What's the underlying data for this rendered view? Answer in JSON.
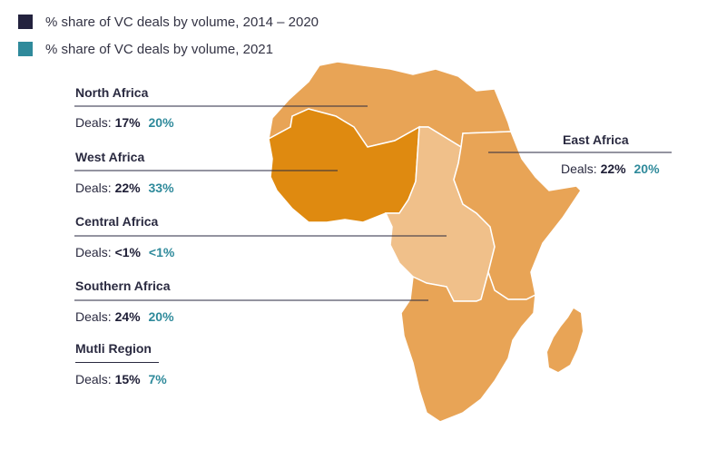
{
  "legend": [
    {
      "label": "% share of VC deals by volume, 2014 – 2020",
      "color": "#23223e"
    },
    {
      "label": "% share of VC deals by volume, 2021",
      "color": "#2f8a9b"
    }
  ],
  "regions": [
    {
      "name": "North Africa",
      "deals_label": "Deals:",
      "share_2014_2020": "17%",
      "share_2021": "20%",
      "fill": "#e8a456"
    },
    {
      "name": "West Africa",
      "deals_label": "Deals:",
      "share_2014_2020": "22%",
      "share_2021": "33%",
      "fill": "#df8a10"
    },
    {
      "name": "Central Africa",
      "deals_label": "Deals:",
      "share_2014_2020": "<1%",
      "share_2021": "<1%",
      "fill": "#f0c08a"
    },
    {
      "name": "Southern Africa",
      "deals_label": "Deals:",
      "share_2014_2020": "24%",
      "share_2021": "20%",
      "fill": "#e8a456"
    },
    {
      "name": "Mutli Region",
      "deals_label": "Deals:",
      "share_2014_2020": "15%",
      "share_2021": "7%"
    },
    {
      "name": "East Africa",
      "deals_label": "Deals:",
      "share_2014_2020": "22%",
      "share_2021": "20%",
      "fill": "#e8a456"
    }
  ]
}
